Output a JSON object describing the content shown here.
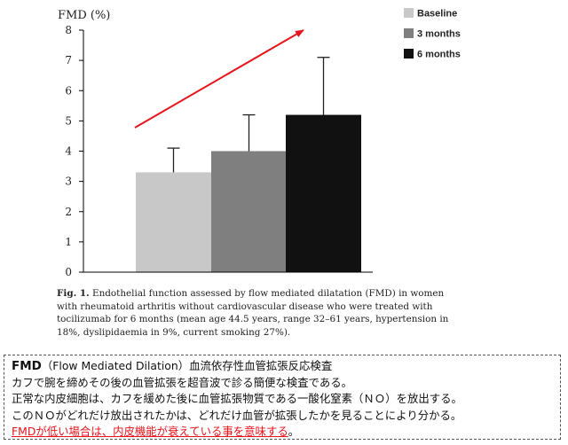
{
  "chart_data": {
    "type": "bar",
    "ylabel": "FMD (%)",
    "categories": [
      "Baseline",
      "3 months",
      "6 months"
    ],
    "values": [
      3.3,
      4.0,
      5.2
    ],
    "errors": [
      0.8,
      1.2,
      1.9
    ],
    "colors": [
      "#c8c8c8",
      "#7f7f7f",
      "#111111"
    ],
    "ylim": [
      0,
      8
    ],
    "yticks": [
      "0",
      "1",
      "2",
      "3",
      "4",
      "5",
      "6",
      "7",
      "8"
    ],
    "legend": [
      {
        "name": "Baseline",
        "color": "#c8c8c8"
      },
      {
        "name": "3 months",
        "color": "#7f7f7f"
      },
      {
        "name": "6 months",
        "color": "#111111"
      }
    ],
    "legend_position": "top-right",
    "grid": false,
    "trend_arrow_color": "#e8141b"
  },
  "caption": {
    "fig_label": "Fig. 1.",
    "line1": "Endothelial function assessed by flow mediated dilatation (FMD) in women",
    "line2": "with rheumatoid arthritis without cardiovascular disease who were treated with",
    "line3": "tocilizumab for 6 months (mean age 44.5 years, range 32–61 years, hypertension in",
    "line4": "18%, dyslipidaemia in 9%, current smoking 27%)."
  },
  "note": {
    "title_bold": "FMD",
    "title_rest": "（Flow Mediated Dilation）血流依存性血管拡張反応検査",
    "line2": "カフで腕を締めその後の血管拡張を超音波で診る簡便な検査である。",
    "line3": "正常な内皮細胞は、カフを緩めた後に血管拡張物質である一酸化窒素（ＮＯ）を放出する。",
    "line4": "このＮＯがどれだけ放出されたかは、どれだけ血管が拡張したかを見ることにより分かる。",
    "line5_red": "FMDが低い場合は、内皮機能が衰えている事を意味する",
    "line5_end": "。",
    "warn_color": "#e8141b"
  }
}
